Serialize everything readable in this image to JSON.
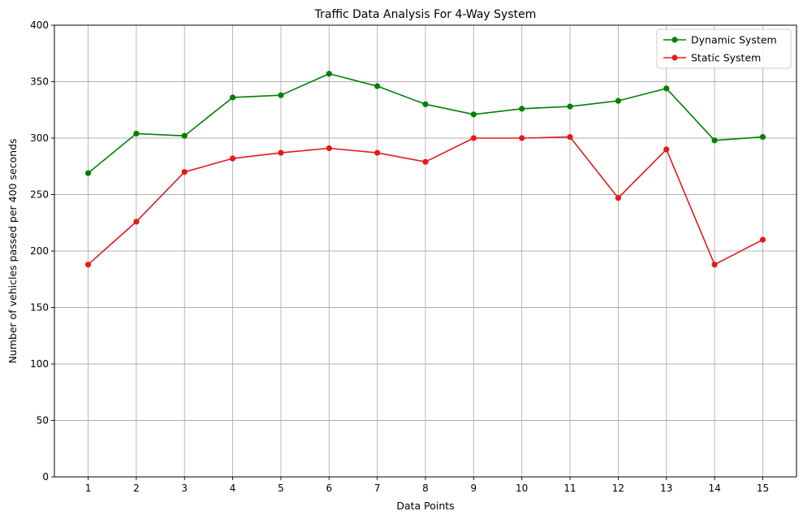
{
  "chart_data": {
    "type": "line",
    "title": "Traffic Data Analysis For 4-Way System",
    "xlabel": "Data Points",
    "ylabel": "Number of vehicles passed per 400 seconds",
    "x": [
      1,
      2,
      3,
      4,
      5,
      6,
      7,
      8,
      9,
      10,
      11,
      12,
      13,
      14,
      15
    ],
    "xticks": [
      "1",
      "2",
      "3",
      "4",
      "5",
      "6",
      "7",
      "8",
      "9",
      "10",
      "11",
      "12",
      "13",
      "14",
      "15"
    ],
    "yticks": [
      "0",
      "50",
      "100",
      "150",
      "200",
      "250",
      "300",
      "350",
      "400"
    ],
    "ylim": [
      0,
      400
    ],
    "xlim": [
      0.3,
      15.7
    ],
    "grid": true,
    "legend": "top-right",
    "series": [
      {
        "name": "Dynamic System",
        "color": "#008000",
        "values": [
          269,
          304,
          302,
          336,
          338,
          357,
          346,
          330,
          321,
          326,
          328,
          333,
          344,
          298,
          301
        ]
      },
      {
        "name": "Static System",
        "color": "#e31a1c",
        "values": [
          188,
          226,
          270,
          282,
          287,
          291,
          287,
          279,
          300,
          300,
          301,
          247,
          290,
          188,
          210
        ]
      }
    ]
  }
}
